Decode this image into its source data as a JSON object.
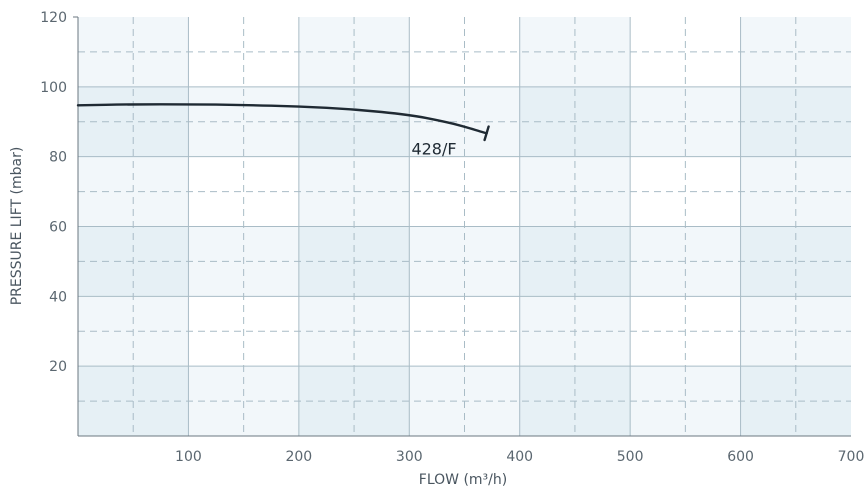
{
  "chart_data": {
    "type": "line",
    "title": "",
    "xlabel": "FLOW (m³/h)",
    "ylabel": "PRESSURE LIFT (mbar)",
    "xlim": [
      0,
      700
    ],
    "ylim": [
      0,
      120
    ],
    "x_ticks": [
      "100",
      "200",
      "300",
      "400",
      "500",
      "600",
      "700"
    ],
    "y_ticks": [
      "20",
      "40",
      "60",
      "80",
      "100",
      "120"
    ],
    "x_minor_step": 50,
    "y_minor_step": 10,
    "grid": true,
    "colors": {
      "line": "#1f2a33",
      "band_light": "#f2f7fa",
      "band_medium": "#e6f0f5",
      "grid_major": "#a9bcc6",
      "grid_minor": "#a9bcc6",
      "axis": "#6b7780"
    },
    "series": [
      {
        "name": "428/F",
        "x": [
          0,
          50,
          100,
          150,
          200,
          250,
          300,
          330,
          350,
          370
        ],
        "y": [
          94.7,
          95.0,
          95.0,
          94.8,
          94.4,
          93.6,
          92.0,
          90.2,
          88.6,
          86.7
        ]
      }
    ]
  }
}
